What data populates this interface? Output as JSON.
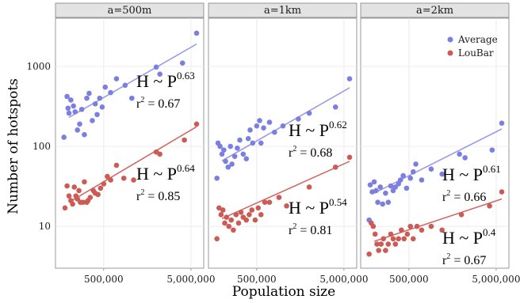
{
  "chart_data": {
    "type": "scatter",
    "xlabel": "Population size",
    "ylabel": "Number of hotspots",
    "x_scale": "log",
    "y_scale": "log",
    "xlim": [
      140000,
      7000000
    ],
    "ylim": [
      3,
      4000
    ],
    "x_ticks": [
      500000,
      5000000
    ],
    "x_tick_labels": [
      "500,000",
      "5,000,000"
    ],
    "y_ticks": [
      10,
      100,
      1000
    ],
    "y_tick_labels": [
      "10",
      "100",
      "1000"
    ],
    "grid": true,
    "legend_position": "top-right",
    "legend": [
      {
        "label": "Average",
        "color": "#7b7fe0"
      },
      {
        "label": "LouBar",
        "color": "#cc5a55"
      }
    ],
    "colors": {
      "average_points": "#7b7fe0",
      "average_line": "#9a9ce8",
      "loubar_points": "#cc5a55",
      "loubar_line": "#d06a66",
      "panel_bg": "#ffffff",
      "strip_bg": "#e3e3e3",
      "grid": "#ececec"
    },
    "panels": [
      {
        "strip": "a=500m",
        "series": [
          {
            "name": "Average",
            "x": [
              175000,
              190000,
              195000,
              200000,
              210000,
              225000,
              235000,
              250000,
              265000,
              280000,
              300000,
              320000,
              340000,
              370000,
              400000,
              420000,
              450000,
              480000,
              520000,
              600000,
              700000,
              880000,
              1050000,
              2000000,
              2200000,
              4000000,
              5800000
            ],
            "y": [
              130,
              420,
              300,
              260,
              380,
              320,
              270,
              160,
              190,
              290,
              140,
              400,
              460,
              210,
              340,
              250,
              400,
              310,
              550,
              470,
              700,
              580,
              400,
              980,
              800,
              1100,
              2600
            ],
            "fit": {
              "exponent": 0.63,
              "intercept_at_x": 200000,
              "y_at_intercept": 230,
              "end_x": 5800000,
              "y_at_end": 1900
            }
          },
          {
            "name": "LouBar",
            "x": [
              180000,
              190000,
              200000,
              210000,
              220000,
              230000,
              240000,
              250000,
              260000,
              270000,
              290000,
              300000,
              320000,
              330000,
              350000,
              380000,
              400000,
              430000,
              460000,
              500000,
              550000,
              600000,
              700000,
              850000,
              1100000,
              2000000,
              2200000,
              4200000,
              5800000
            ],
            "y": [
              17,
              32,
              24,
              21,
              19,
              31,
              24,
              22,
              28,
              20,
              20,
              36,
              20,
              21,
              23,
              28,
              26,
              25,
              30,
              34,
              42,
              38,
              58,
              40,
              38,
              85,
              80,
              120,
              190
            ],
            "fit": {
              "exponent": 0.64,
              "intercept_at_x": 200000,
              "y_at_intercept": 20,
              "end_x": 5800000,
              "y_at_end": 176
            }
          }
        ],
        "annotations": [
          {
            "series": "Average",
            "h_text": "H ~ P",
            "exp": "0.63",
            "r_text": "r",
            "r_sup": "2",
            "r_value": " = 0.67"
          },
          {
            "series": "LouBar",
            "h_text": "H ~ P",
            "exp": "0.64",
            "r_text": "r",
            "r_sup": "2",
            "r_value": " = 0.85"
          }
        ]
      },
      {
        "strip": "a=1km",
        "series": [
          {
            "name": "Average",
            "x": [
              175000,
              180000,
              190000,
              200000,
              210000,
              220000,
              235000,
              250000,
              260000,
              280000,
              300000,
              320000,
              350000,
              380000,
              400000,
              420000,
              450000,
              500000,
              540000,
              560000,
              600000,
              700000,
              800000,
              1000000,
              1500000,
              2000000,
              4000000,
              5800000
            ],
            "y": [
              40,
              110,
              100,
              80,
              90,
              65,
              55,
              100,
              60,
              75,
              95,
              120,
              80,
              70,
              125,
              160,
              110,
              180,
              210,
              110,
              170,
              200,
              150,
              180,
              220,
              260,
              310,
              700
            ],
            "fit": {
              "exponent": 0.62,
              "intercept_at_x": 200000,
              "y_at_intercept": 66,
              "end_x": 5800000,
              "y_at_end": 540
            }
          },
          {
            "name": "LouBar",
            "x": [
              175000,
              185000,
              195000,
              205000,
              215000,
              225000,
              240000,
              255000,
              270000,
              290000,
              310000,
              330000,
              350000,
              380000,
              410000,
              440000,
              480000,
              520000,
              560000,
              620000,
              700000,
              900000,
              1100000,
              2000000,
              4000000,
              5800000
            ],
            "y": [
              7,
              17,
              14,
              16,
              11,
              13,
              10,
              12,
              9,
              14,
              11,
              15,
              13,
              12,
              14,
              16,
              12,
              17,
              14,
              20,
              20,
              23,
              18,
              31,
              55,
              73
            ],
            "fit": {
              "exponent": 0.54,
              "intercept_at_x": 200000,
              "y_at_intercept": 12.5,
              "end_x": 5800000,
              "y_at_end": 65
            }
          }
        ],
        "annotations": [
          {
            "series": "Average",
            "h_text": "H ~ P",
            "exp": "0.62",
            "r_text": "r",
            "r_sup": "2",
            "r_value": " = 0.68"
          },
          {
            "series": "LouBar",
            "h_text": "H ~ P",
            "exp": "0.54",
            "r_text": "r",
            "r_sup": "2",
            "r_value": " = 0.81"
          }
        ]
      },
      {
        "strip": "a=2km",
        "series": [
          {
            "name": "Average",
            "x": [
              175000,
              180000,
              190000,
              200000,
              210000,
              220000,
              235000,
              250000,
              270000,
              290000,
              310000,
              330000,
              350000,
              380000,
              400000,
              430000,
              470000,
              520000,
              560000,
              600000,
              700000,
              900000,
              1200000,
              1900000,
              2200000,
              4500000,
              5800000
            ],
            "y": [
              12,
              33,
              27,
              36,
              28,
              20,
              31,
              19,
              26,
              20,
              32,
              28,
              31,
              34,
              38,
              43,
              30,
              40,
              48,
              60,
              38,
              52,
              45,
              80,
              72,
              90,
              195
            ],
            "fit": {
              "exponent": 0.61,
              "intercept_at_x": 200000,
              "y_at_intercept": 26,
              "end_x": 5800000,
              "y_at_end": 165
            }
          },
          {
            "name": "LouBar",
            "x": [
              175000,
              185000,
              195000,
              205000,
              215000,
              225000,
              240000,
              255000,
              270000,
              290000,
              310000,
              330000,
              350000,
              380000,
              410000,
              440000,
              480000,
              520000,
              560000,
              620000,
              700000,
              900000,
              1200000,
              2000000,
              4200000,
              5800000
            ],
            "y": [
              4.5,
              11,
              10,
              8,
              6,
              5,
              6,
              7,
              5,
              6,
              8,
              7,
              6,
              7,
              9,
              7,
              8,
              10,
              7,
              10,
              9,
              10,
              9,
              14,
              18,
              27
            ],
            "fit": {
              "exponent": 0.4,
              "intercept_at_x": 200000,
              "y_at_intercept": 6.5,
              "end_x": 5800000,
              "y_at_end": 22
            }
          }
        ],
        "annotations": [
          {
            "series": "Average",
            "h_text": "H ~ P",
            "exp": "0.61",
            "r_text": "r",
            "r_sup": "2",
            "r_value": " = 0.66"
          },
          {
            "series": "LouBar",
            "h_text": "H ~ P",
            "exp": "0.4",
            "r_text": "r",
            "r_sup": "2",
            "r_value": " = 0.67"
          }
        ]
      }
    ]
  }
}
